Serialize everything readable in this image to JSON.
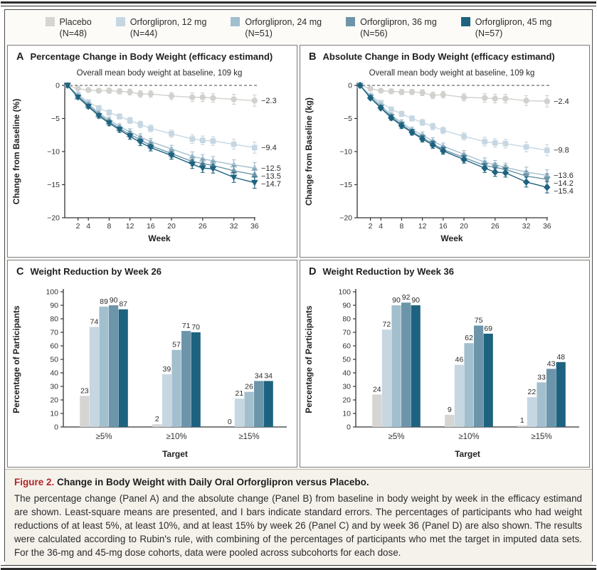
{
  "legend": {
    "items": [
      {
        "label": "Placebo",
        "n": "(N=48)",
        "color": "#d6d5d2"
      },
      {
        "label": "Orforglipron, 12 mg",
        "n": "(N=44)",
        "color": "#c6d7e2"
      },
      {
        "label": "Orforglipron, 24 mg",
        "n": "(N=51)",
        "color": "#a2bfce"
      },
      {
        "label": "Orforglipron, 36 mg",
        "n": "(N=56)",
        "color": "#6d95aa"
      },
      {
        "label": "Orforglipron, 45 mg",
        "n": "(N=57)",
        "color": "#1d6380"
      }
    ]
  },
  "chart_data": [
    {
      "id": "panelA",
      "type": "line",
      "panel_letter": "A",
      "title": "Percentage Change in Body Weight (efficacy estimand)",
      "annotation": "Overall mean body weight at baseline, 109 kg",
      "xlabel": "Week",
      "ylabel": "Change from Baseline (%)",
      "ylim": [
        -20,
        0
      ],
      "yticks": [
        0,
        -5,
        -10,
        -15,
        -20
      ],
      "xticks": [
        2,
        4,
        8,
        12,
        16,
        20,
        26,
        32,
        36
      ],
      "x": [
        0,
        2,
        4,
        6,
        8,
        10,
        12,
        14,
        16,
        20,
        24,
        26,
        28,
        32,
        36
      ],
      "se": [
        0,
        0.25,
        0.3,
        0.35,
        0.4,
        0.4,
        0.45,
        0.5,
        0.5,
        0.55,
        0.65,
        0.65,
        0.65,
        0.75,
        0.85
      ],
      "series": [
        {
          "name": "Placebo",
          "color": "#d2d1ce",
          "marker": "circle",
          "end_label": "−2.3",
          "values": [
            0,
            -0.5,
            -0.7,
            -0.8,
            -0.8,
            -0.9,
            -1.0,
            -1.3,
            -1.3,
            -1.6,
            -1.8,
            -1.8,
            -1.9,
            -2.1,
            -2.3
          ]
        },
        {
          "name": "Orforglipron, 12 mg",
          "color": "#c6d7e2",
          "marker": "square",
          "end_label": "−9.4",
          "values": [
            0,
            -1.4,
            -2.5,
            -3.4,
            -4.1,
            -4.7,
            -5.3,
            -5.9,
            -6.5,
            -7.3,
            -8.1,
            -8.3,
            -8.4,
            -8.9,
            -9.4
          ]
        },
        {
          "name": "Orforglipron, 24 mg",
          "color": "#a2bfce",
          "marker": "triangle-up",
          "end_label": "−12.5",
          "values": [
            0,
            -1.5,
            -2.8,
            -4.2,
            -5.2,
            -6.2,
            -7.0,
            -7.8,
            -8.5,
            -9.6,
            -10.7,
            -11.1,
            -11.4,
            -12.0,
            -12.5
          ]
        },
        {
          "name": "Orforglipron, 36 mg",
          "color": "#6d95aa",
          "marker": "triangle-up",
          "end_label": "−13.5",
          "values": [
            0,
            -1.7,
            -3.0,
            -4.4,
            -5.5,
            -6.5,
            -7.4,
            -8.2,
            -9.1,
            -10.3,
            -11.5,
            -11.8,
            -12.1,
            -12.9,
            -13.5
          ]
        },
        {
          "name": "Orforglipron, 45 mg",
          "color": "#1d6380",
          "marker": "triangle-down",
          "end_label": "−14.7",
          "values": [
            0,
            -1.8,
            -3.2,
            -4.6,
            -5.7,
            -6.7,
            -7.7,
            -8.6,
            -9.4,
            -10.6,
            -11.9,
            -12.5,
            -12.6,
            -13.9,
            -14.7
          ]
        }
      ]
    },
    {
      "id": "panelB",
      "type": "line",
      "panel_letter": "B",
      "title": "Absolute Change in Body Weight (efficacy estimand)",
      "annotation": "Overall mean body weight at baseline, 109 kg",
      "xlabel": "Week",
      "ylabel": "Change from Baseline (kg)",
      "ylim": [
        -20,
        0
      ],
      "yticks": [
        0,
        -5,
        -10,
        -15,
        -20
      ],
      "xticks": [
        2,
        4,
        8,
        12,
        16,
        20,
        26,
        32,
        36
      ],
      "x": [
        0,
        2,
        4,
        6,
        8,
        10,
        12,
        14,
        16,
        20,
        24,
        26,
        28,
        32,
        36
      ],
      "se": [
        0,
        0.25,
        0.3,
        0.35,
        0.4,
        0.4,
        0.45,
        0.5,
        0.5,
        0.55,
        0.65,
        0.65,
        0.65,
        0.75,
        0.85
      ],
      "series": [
        {
          "name": "Placebo",
          "color": "#d2d1ce",
          "marker": "circle",
          "end_label": "−2.4",
          "values": [
            0,
            -0.5,
            -0.8,
            -0.9,
            -1.0,
            -1.0,
            -1.1,
            -1.5,
            -1.4,
            -1.8,
            -1.9,
            -2.0,
            -2.0,
            -2.3,
            -2.4
          ]
        },
        {
          "name": "Orforglipron, 12 mg",
          "color": "#c6d7e2",
          "marker": "square",
          "end_label": "−9.8",
          "values": [
            0,
            -1.5,
            -2.6,
            -3.6,
            -4.3,
            -5.0,
            -5.6,
            -6.2,
            -6.8,
            -7.7,
            -8.5,
            -8.7,
            -8.8,
            -9.3,
            -9.8
          ]
        },
        {
          "name": "Orforglipron, 24 mg",
          "color": "#a2bfce",
          "marker": "triangle-up",
          "end_label": "−13.6",
          "values": [
            0,
            -1.6,
            -3.0,
            -4.5,
            -5.6,
            -6.7,
            -7.5,
            -8.4,
            -9.2,
            -10.4,
            -11.6,
            -12.0,
            -12.4,
            -13.1,
            -13.6
          ]
        },
        {
          "name": "Orforglipron, 36 mg",
          "color": "#6d95aa",
          "marker": "triangle-down",
          "end_label": "−14.2",
          "values": [
            0,
            -1.8,
            -3.3,
            -4.7,
            -5.9,
            -7.0,
            -7.9,
            -8.8,
            -9.7,
            -10.9,
            -12.1,
            -12.4,
            -12.7,
            -13.7,
            -14.2
          ]
        },
        {
          "name": "Orforglipron, 45 mg",
          "color": "#1d6380",
          "marker": "diamond",
          "end_label": "−15.4",
          "values": [
            0,
            -1.9,
            -3.4,
            -4.9,
            -6.1,
            -7.1,
            -8.1,
            -9.0,
            -9.9,
            -11.2,
            -12.5,
            -13.1,
            -13.2,
            -14.6,
            -15.4
          ]
        }
      ]
    },
    {
      "id": "panelC",
      "type": "bar",
      "panel_letter": "C",
      "title": "Weight Reduction by Week 26",
      "xlabel": "Target",
      "ylabel": "Percentage of Participants",
      "ylim": [
        0,
        100
      ],
      "yticks": [
        0,
        10,
        20,
        30,
        40,
        50,
        60,
        70,
        80,
        90,
        100
      ],
      "categories": [
        "≥5%",
        "≥10%",
        "≥15%"
      ],
      "series": [
        {
          "name": "Placebo",
          "color": "#d6d5d2",
          "values": [
            23,
            2,
            0
          ]
        },
        {
          "name": "Orforglipron, 12 mg",
          "color": "#c6d7e2",
          "values": [
            74,
            39,
            21
          ]
        },
        {
          "name": "Orforglipron, 24 mg",
          "color": "#a2bfce",
          "values": [
            89,
            57,
            26
          ]
        },
        {
          "name": "Orforglipron, 36 mg",
          "color": "#6d95aa",
          "values": [
            90,
            71,
            34
          ]
        },
        {
          "name": "Orforglipron, 45 mg",
          "color": "#1d6380",
          "values": [
            87,
            70,
            34
          ]
        }
      ]
    },
    {
      "id": "panelD",
      "type": "bar",
      "panel_letter": "D",
      "title": "Weight Reduction by Week 36",
      "xlabel": "Target",
      "ylabel": "Percentage of Participants",
      "ylim": [
        0,
        100
      ],
      "yticks": [
        0,
        10,
        20,
        30,
        40,
        50,
        60,
        70,
        80,
        90,
        100
      ],
      "categories": [
        "≥5%",
        "≥10%",
        "≥15%"
      ],
      "series": [
        {
          "name": "Placebo",
          "color": "#d6d5d2",
          "values": [
            24,
            9,
            1
          ]
        },
        {
          "name": "Orforglipron, 12 mg",
          "color": "#c6d7e2",
          "values": [
            72,
            46,
            22
          ]
        },
        {
          "name": "Orforglipron, 24 mg",
          "color": "#a2bfce",
          "values": [
            90,
            62,
            33
          ]
        },
        {
          "name": "Orforglipron, 36 mg",
          "color": "#6d95aa",
          "values": [
            92,
            75,
            43
          ]
        },
        {
          "name": "Orforglipron, 45 mg",
          "color": "#1d6380",
          "values": [
            90,
            69,
            48
          ]
        }
      ]
    }
  ],
  "caption": {
    "figure_label": "Figure 2.",
    "title": "Change in Body Weight with Daily Oral Orforglipron versus Placebo.",
    "body": "The percentage change (Panel A) and the absolute change (Panel B) from baseline in body weight by week in the efficacy estimand are shown. Least-square means are presented, and I bars indicate standard errors. The percentages of participants who had weight reductions of at least 5%, at least 10%, and at least 15% by week 26 (Panel C) and by week 36 (Panel D) are also shown. The results were calculated according to Rubin's rule, with combining of the percentages of participants who met the target in imputed data sets. For the 36-mg and 45-mg dose cohorts, data were pooled across subcohorts for each dose."
  }
}
